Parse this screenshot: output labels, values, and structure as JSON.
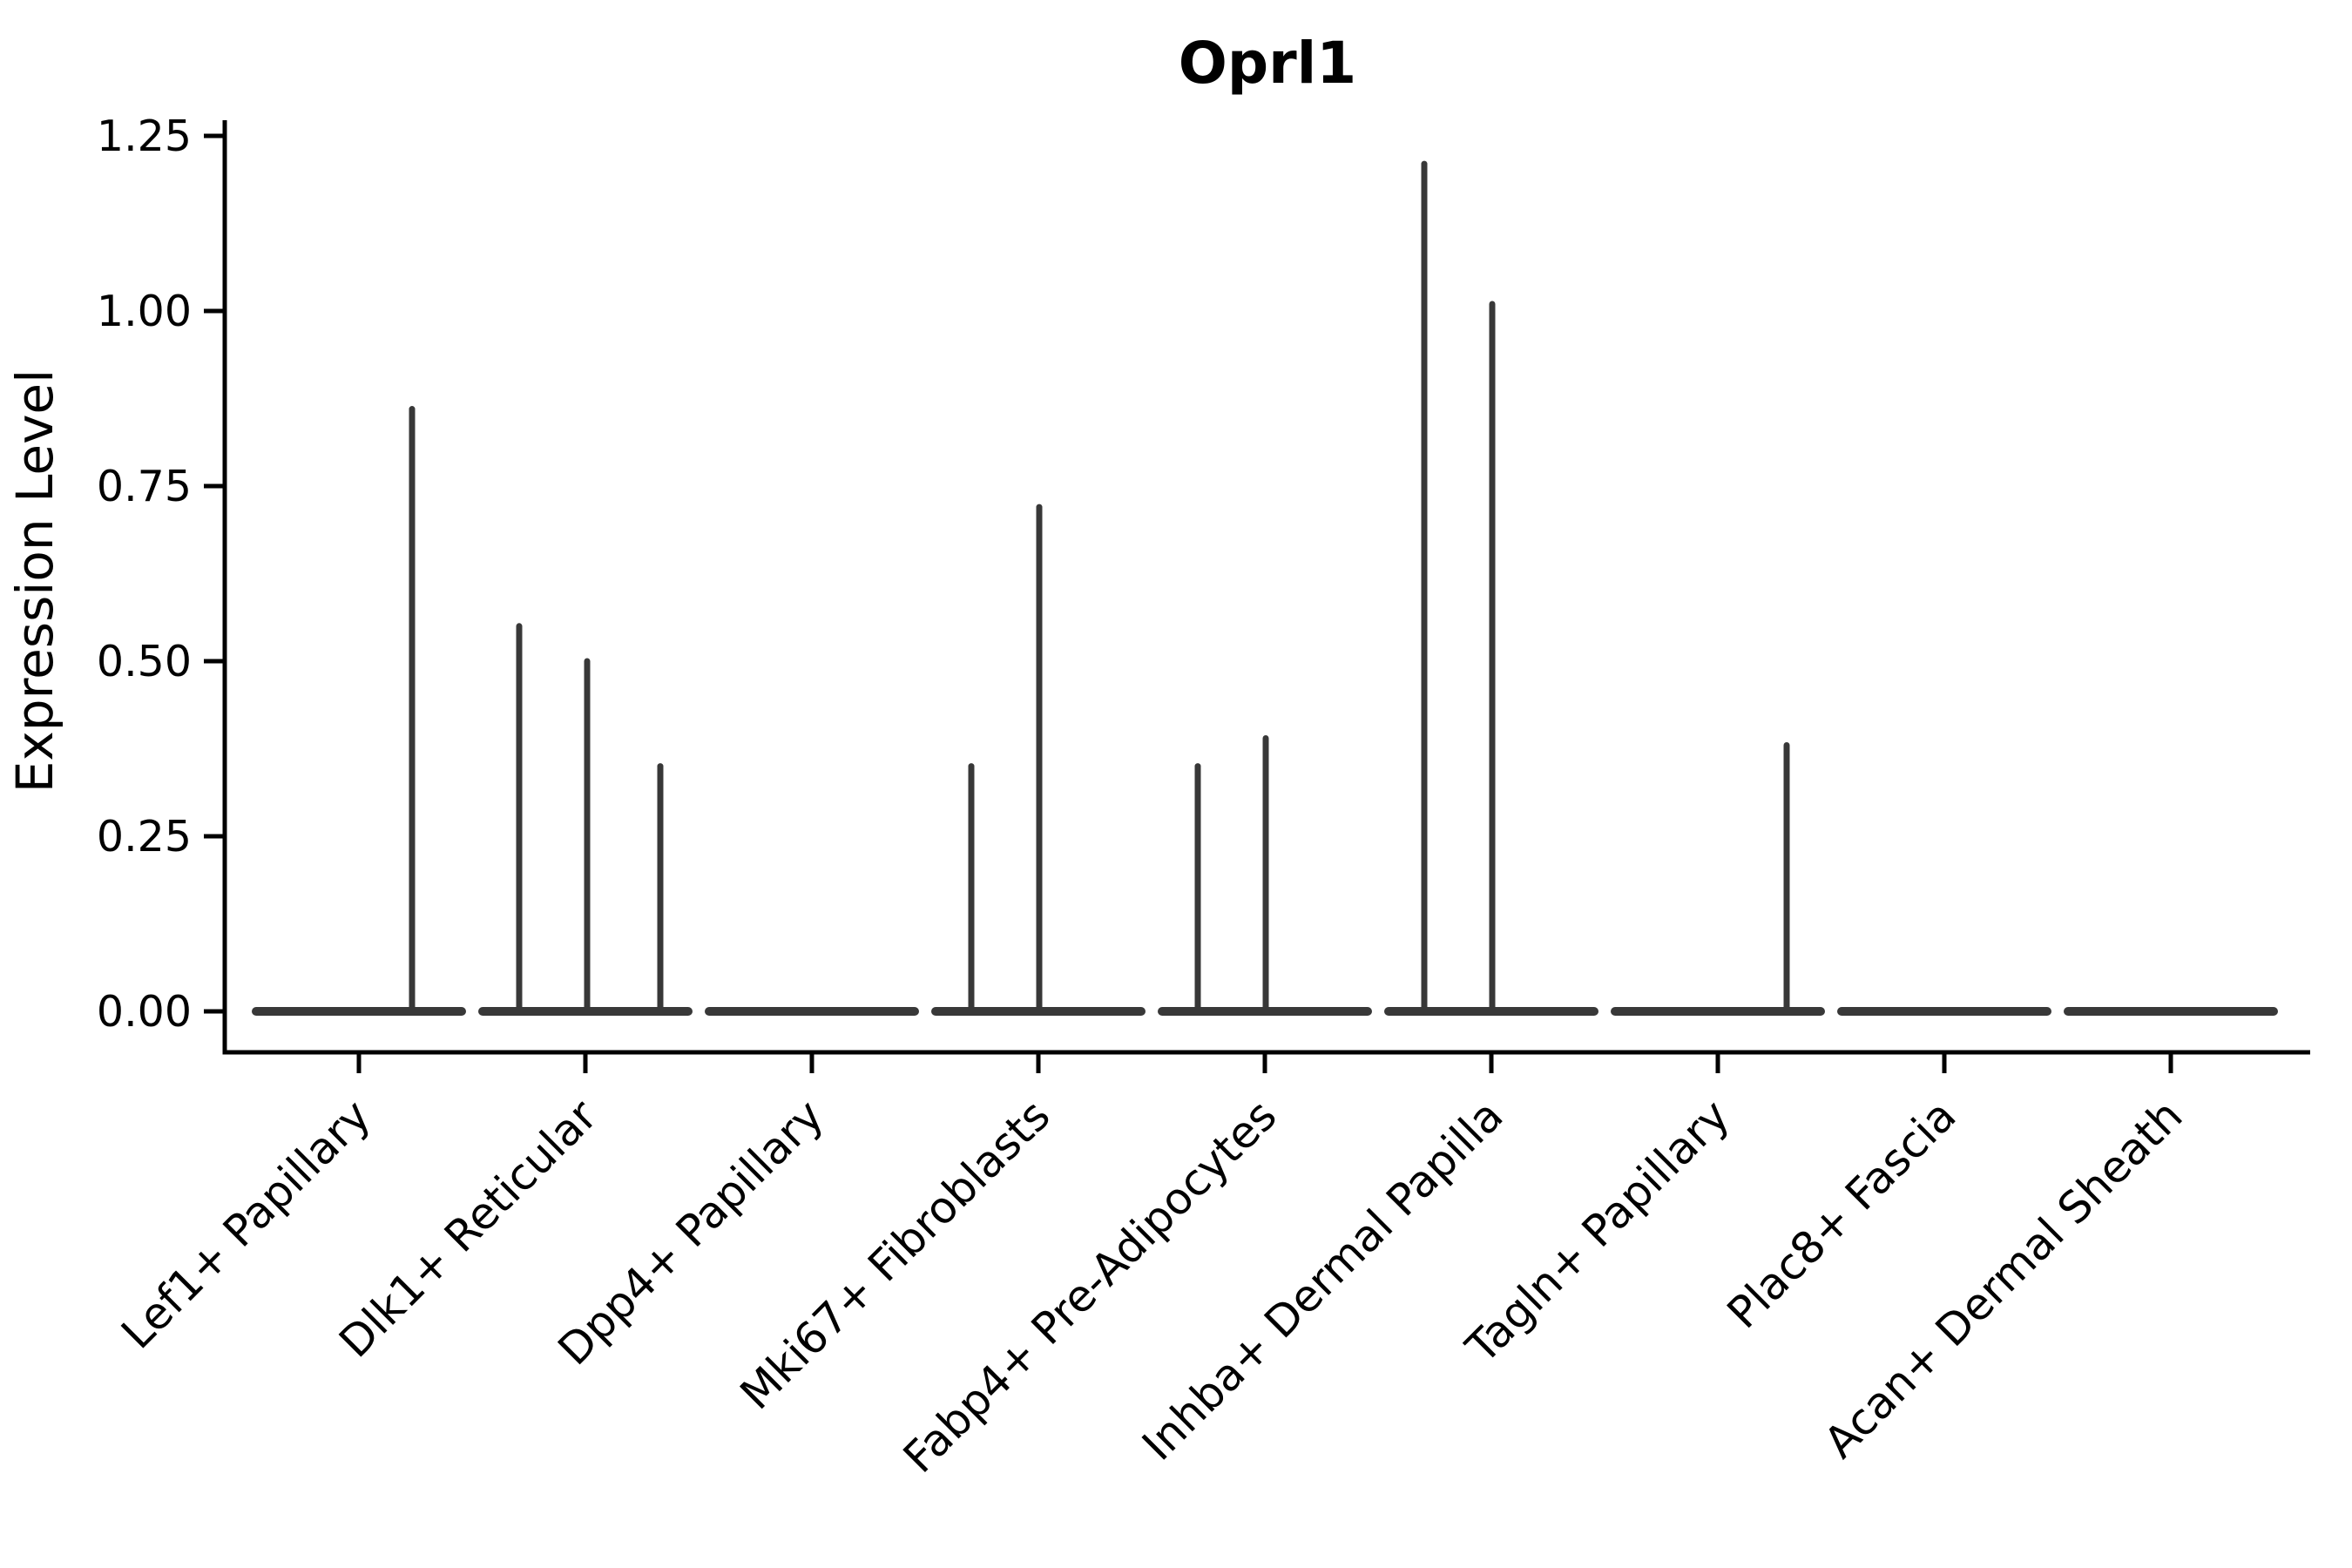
{
  "chart_data": {
    "type": "violin",
    "title": "Oprl1",
    "ylabel": "Expression Level",
    "xlabel": "",
    "ylim": [
      0,
      1.25
    ],
    "ytick_step": 0.25,
    "ytick_labels": [
      "0.00",
      "0.25",
      "0.50",
      "0.75",
      "1.00",
      "1.25"
    ],
    "grid": "off",
    "legend": "none",
    "violin_color": "#383838",
    "axis_color": "#000000",
    "categories": [
      {
        "label": "Lef1+ Papillary",
        "spikes": [
          {
            "offset": 61,
            "value": 0.86
          }
        ]
      },
      {
        "label": "Dlk1+ Reticular",
        "spikes": [
          {
            "offset": -76,
            "value": 0.55
          },
          {
            "offset": 2,
            "value": 0.5
          },
          {
            "offset": 86,
            "value": 0.35
          }
        ]
      },
      {
        "label": "Dpp4+ Papillary",
        "spikes": []
      },
      {
        "label": "Mki67+ Fibroblasts",
        "spikes": [
          {
            "offset": -77,
            "value": 0.35
          },
          {
            "offset": 1,
            "value": 0.72
          }
        ]
      },
      {
        "label": "Fabp4+ Pre-Adipocytes",
        "spikes": [
          {
            "offset": -77,
            "value": 0.35
          },
          {
            "offset": 1,
            "value": 0.39
          }
        ]
      },
      {
        "label": "Inhba+ Dermal Papilla",
        "spikes": [
          {
            "offset": -77,
            "value": 1.21
          },
          {
            "offset": 1,
            "value": 1.01
          }
        ]
      },
      {
        "label": "Tagln+ Papillary",
        "spikes": [
          {
            "offset": 79,
            "value": 0.38
          }
        ]
      },
      {
        "label": "Plac8+ Fascia",
        "spikes": []
      },
      {
        "label": "Acan+ Dermal Sheath",
        "spikes": []
      }
    ]
  }
}
